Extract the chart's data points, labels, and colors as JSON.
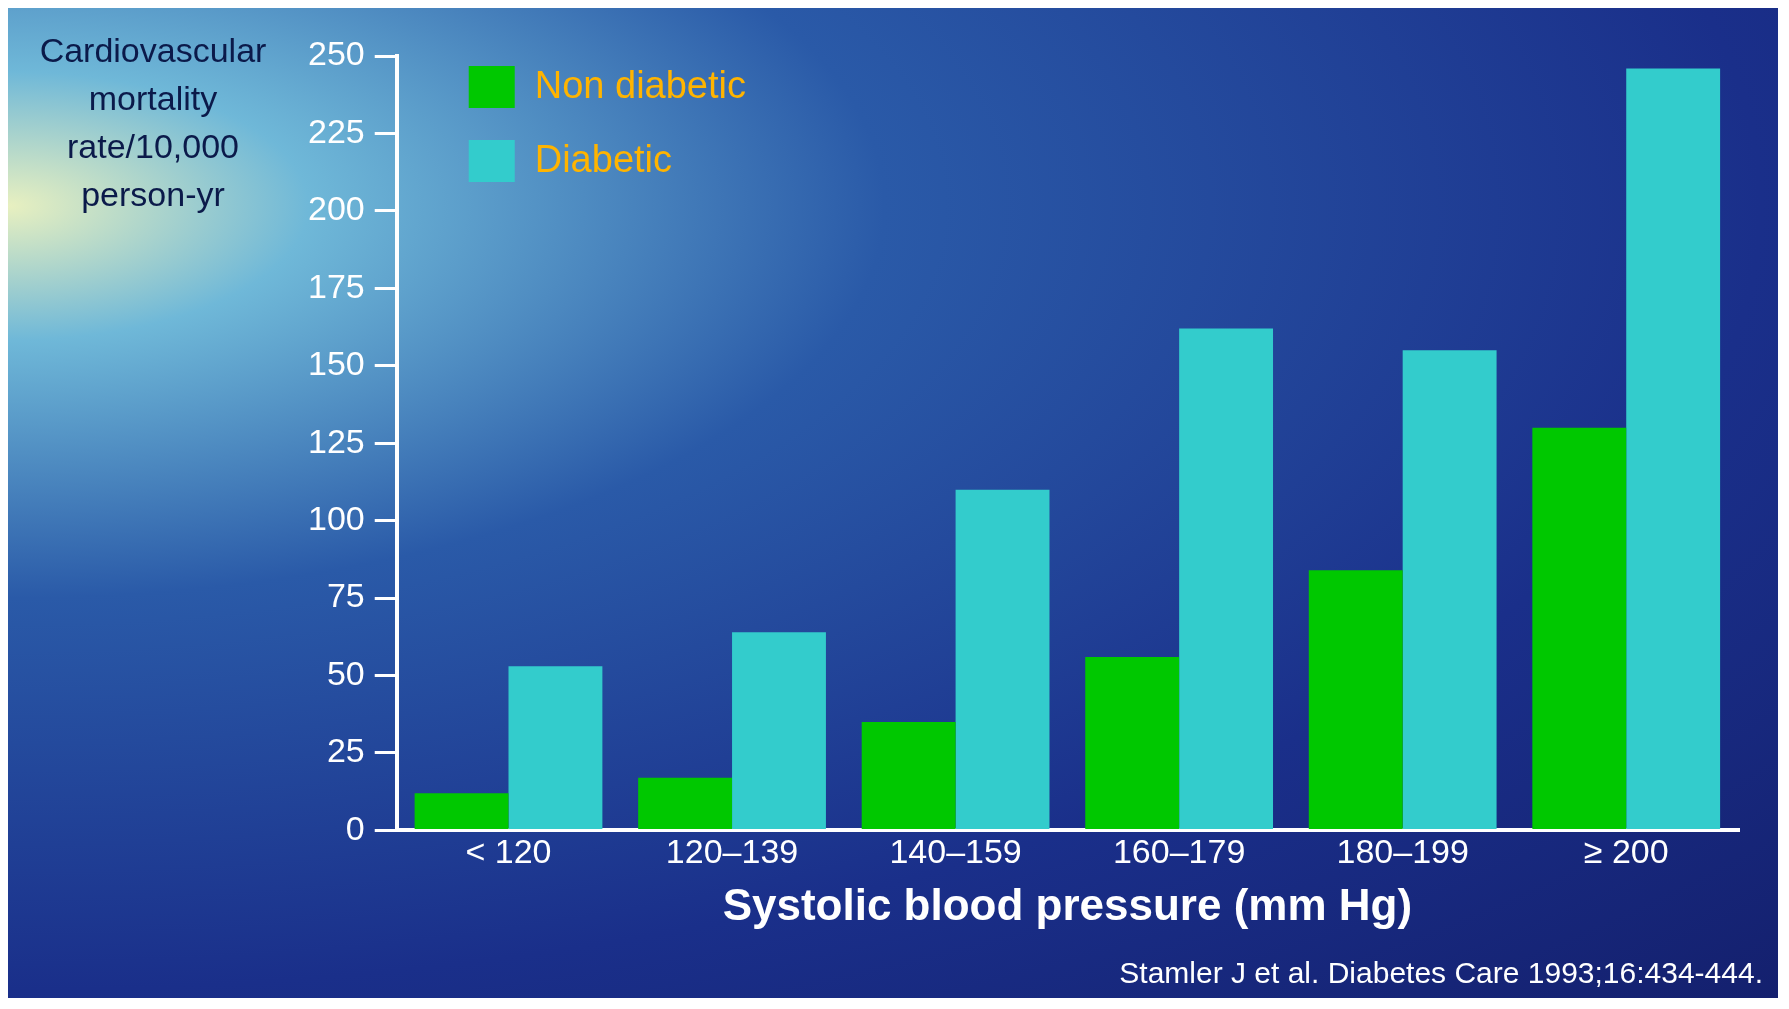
{
  "chart_data": {
    "type": "bar",
    "ylabel": "Cardiovascular mortality rate/10,000 person-yr",
    "xlabel": "Systolic blood pressure (mm Hg)",
    "categories": [
      "< 120",
      "120–139",
      "140–159",
      "160–179",
      "180–199",
      "≥ 200"
    ],
    "series": [
      {
        "name": "Non diabetic",
        "color": "#00c800",
        "values": [
          12,
          17,
          35,
          56,
          84,
          130
        ]
      },
      {
        "name": "Diabetic",
        "color": "#33cccc",
        "values": [
          53,
          64,
          110,
          162,
          155,
          246
        ]
      }
    ],
    "ylim": [
      0,
      250
    ],
    "yticks": [
      0,
      25,
      50,
      75,
      100,
      125,
      150,
      175,
      200,
      225,
      250
    ],
    "legend": "top left",
    "annotations": [
      "Stamler J et al. Diabetes Care 1993;16:434-444."
    ]
  }
}
